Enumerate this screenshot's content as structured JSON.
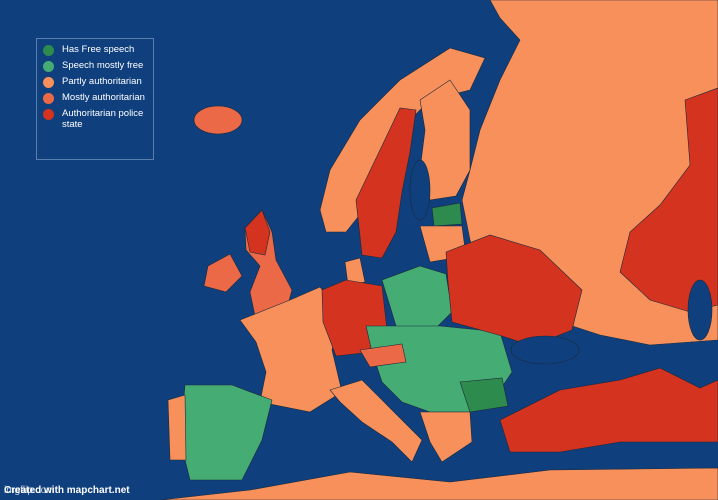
{
  "legend": {
    "items": [
      {
        "label": "Has Free speech",
        "color": "#2e8b4e"
      },
      {
        "label": "Speech mostly free",
        "color": "#45ad74"
      },
      {
        "label": "Partly authoritarian",
        "color": "#f7905b"
      },
      {
        "label": "Mostly authoritarian",
        "color": "#ec6947"
      },
      {
        "label": "Authoritarian police state",
        "color": "#d4331f"
      }
    ]
  },
  "watermarks": [
    "Created with mapchart.net",
    "imgflip.com"
  ]
}
